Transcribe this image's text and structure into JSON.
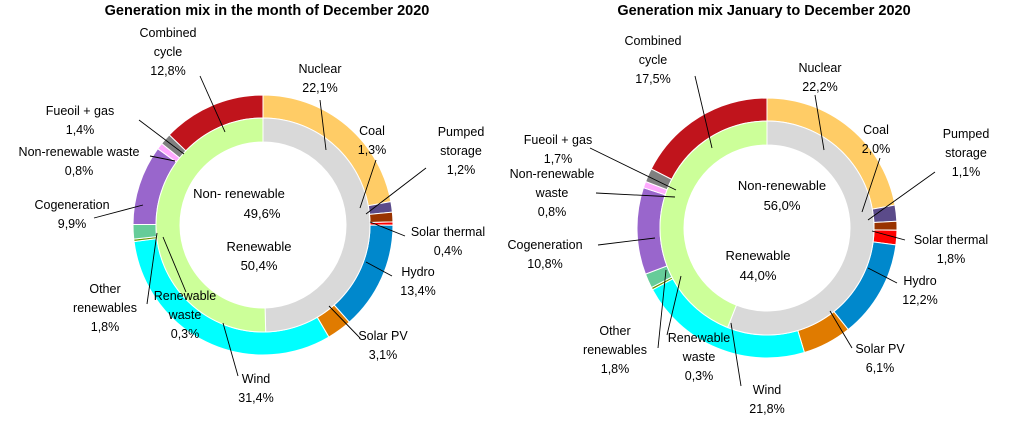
{
  "chart_data": [
    {
      "type": "pie",
      "title": "Generation mix in the month of December 2020",
      "inner": [
        {
          "label": "Non- renewable",
          "value": 49.6,
          "value_text": "49,6%",
          "color": "#d9d9d9"
        },
        {
          "label": "Renewable",
          "value": 50.4,
          "value_text": "50,4%",
          "color": "#ccff99"
        }
      ],
      "outer": [
        {
          "label": "Nuclear",
          "value": 22.1,
          "value_text": "22,1%",
          "color": "#ffcc66"
        },
        {
          "label": "Coal",
          "value": 1.3,
          "value_text": "1,3%",
          "color": "#5b4b8a"
        },
        {
          "label": "Pumped storage",
          "value": 1.2,
          "value_text": "1,2%",
          "color": "#993300"
        },
        {
          "label": "Solar thermal",
          "value": 0.4,
          "value_text": "0,4%",
          "color": "#ff0000"
        },
        {
          "label": "Hydro",
          "value": 13.4,
          "value_text": "13,4%",
          "color": "#0088cc"
        },
        {
          "label": "Solar PV",
          "value": 3.1,
          "value_text": "3,1%",
          "color": "#e07b00"
        },
        {
          "label": "Wind",
          "value": 31.4,
          "value_text": "31,4%",
          "color": "#00ffff"
        },
        {
          "label": "Renewable waste",
          "value": 0.3,
          "value_text": "0,3%",
          "color": "#669900"
        },
        {
          "label": "Other renewables",
          "value": 1.8,
          "value_text": "1,8%",
          "color": "#66cc99"
        },
        {
          "label": "Cogeneration",
          "value": 9.9,
          "value_text": "9,9%",
          "color": "#9966cc"
        },
        {
          "label": "Non-renewable waste",
          "value": 0.8,
          "value_text": "0,8%",
          "color": "#ffaaff"
        },
        {
          "label": "Fueoil + gas",
          "value": 1.4,
          "value_text": "1,4%",
          "color": "#7f7f7f"
        },
        {
          "label": "Combined cycle",
          "value": 12.8,
          "value_text": "12,8%",
          "color": "#c0141c"
        }
      ]
    },
    {
      "type": "pie",
      "title": "Generation mix January to December 2020",
      "inner": [
        {
          "label": "Non-renewable",
          "value": 56.0,
          "value_text": "56,0%",
          "color": "#d9d9d9"
        },
        {
          "label": "Renewable",
          "value": 44.0,
          "value_text": "44,0%",
          "color": "#ccff99"
        }
      ],
      "outer": [
        {
          "label": "Nuclear",
          "value": 22.2,
          "value_text": "22,2%",
          "color": "#ffcc66"
        },
        {
          "label": "Coal",
          "value": 2.0,
          "value_text": "2,0%",
          "color": "#5b4b8a"
        },
        {
          "label": "Pumped storage",
          "value": 1.1,
          "value_text": "1,1%",
          "color": "#993300"
        },
        {
          "label": "Solar thermal",
          "value": 1.8,
          "value_text": "1,8%",
          "color": "#ff0000"
        },
        {
          "label": "Hydro",
          "value": 12.2,
          "value_text": "12,2%",
          "color": "#0088cc"
        },
        {
          "label": "Solar PV",
          "value": 6.1,
          "value_text": "6,1%",
          "color": "#e07b00"
        },
        {
          "label": "Wind",
          "value": 21.8,
          "value_text": "21,8%",
          "color": "#00ffff"
        },
        {
          "label": "Renewable waste",
          "value": 0.3,
          "value_text": "0,3%",
          "color": "#669900"
        },
        {
          "label": "Other renewables",
          "value": 1.8,
          "value_text": "1,8%",
          "color": "#66cc99"
        },
        {
          "label": "Cogeneration",
          "value": 10.8,
          "value_text": "10,8%",
          "color": "#9966cc"
        },
        {
          "label": "Non-renewable waste",
          "value": 0.8,
          "value_text": "0,8%",
          "color": "#ffaaff"
        },
        {
          "label": "Fueoil + gas",
          "value": 1.7,
          "value_text": "1,7%",
          "color": "#7f7f7f"
        },
        {
          "label": "Combined cycle",
          "value": 17.5,
          "value_text": "17,5%",
          "color": "#c0141c"
        }
      ]
    }
  ]
}
